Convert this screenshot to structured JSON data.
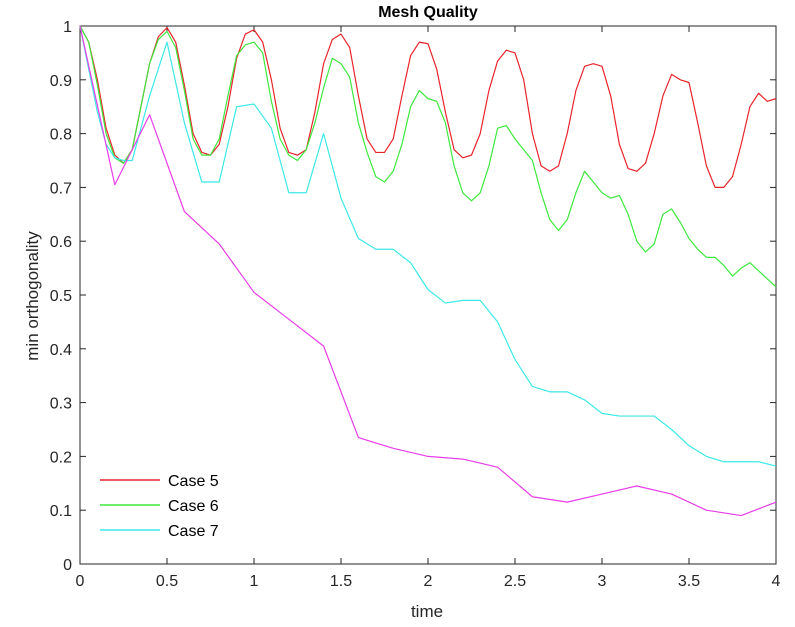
{
  "chart_data": {
    "type": "line",
    "title": "Mesh Quality",
    "xlabel": "time",
    "ylabel": "min orthogonality",
    "xlim": [
      0,
      4
    ],
    "ylim": [
      0,
      1
    ],
    "xticks": [
      0,
      0.5,
      1,
      1.5,
      2,
      2.5,
      3,
      3.5,
      4
    ],
    "xtick_labels": [
      "0",
      "0.5",
      "1",
      "1.5",
      "2",
      "2.5",
      "3",
      "3.5",
      "4"
    ],
    "yticks": [
      0,
      0.1,
      0.2,
      0.3,
      0.4,
      0.5,
      0.6,
      0.7,
      0.8,
      0.9,
      1
    ],
    "ytick_labels": [
      "0",
      "0.1",
      "0.2",
      "0.3",
      "0.4",
      "0.5",
      "0.6",
      "0.7",
      "0.8",
      "0.9",
      "1"
    ],
    "grid": false,
    "legend_position": "bottom-left",
    "series": [
      {
        "name": "Case 5",
        "color": "#e8242b",
        "x": [
          0,
          0.05,
          0.1,
          0.15,
          0.2,
          0.25,
          0.3,
          0.35,
          0.4,
          0.45,
          0.5,
          0.55,
          0.6,
          0.65,
          0.7,
          0.75,
          0.8,
          0.85,
          0.9,
          0.95,
          1.0,
          1.05,
          1.1,
          1.15,
          1.2,
          1.25,
          1.3,
          1.35,
          1.4,
          1.45,
          1.5,
          1.55,
          1.6,
          1.65,
          1.7,
          1.75,
          1.8,
          1.85,
          1.9,
          1.95,
          2.0,
          2.05,
          2.1,
          2.15,
          2.2,
          2.25,
          2.3,
          2.35,
          2.4,
          2.45,
          2.5,
          2.55,
          2.6,
          2.65,
          2.7,
          2.75,
          2.8,
          2.85,
          2.9,
          2.95,
          3.0,
          3.05,
          3.1,
          3.15,
          3.2,
          3.25,
          3.3,
          3.35,
          3.4,
          3.45,
          3.5,
          3.55,
          3.6,
          3.65,
          3.7,
          3.75,
          3.8,
          3.85,
          3.9,
          3.95,
          4.0
        ],
        "y": [
          1.0,
          0.97,
          0.9,
          0.81,
          0.76,
          0.745,
          0.77,
          0.85,
          0.93,
          0.98,
          0.997,
          0.97,
          0.89,
          0.8,
          0.765,
          0.76,
          0.78,
          0.85,
          0.94,
          0.985,
          0.993,
          0.97,
          0.9,
          0.81,
          0.765,
          0.76,
          0.77,
          0.84,
          0.93,
          0.975,
          0.985,
          0.96,
          0.87,
          0.79,
          0.765,
          0.765,
          0.79,
          0.87,
          0.945,
          0.97,
          0.967,
          0.92,
          0.84,
          0.77,
          0.755,
          0.76,
          0.8,
          0.88,
          0.935,
          0.955,
          0.95,
          0.9,
          0.8,
          0.74,
          0.73,
          0.74,
          0.8,
          0.88,
          0.925,
          0.93,
          0.925,
          0.87,
          0.78,
          0.735,
          0.73,
          0.745,
          0.8,
          0.87,
          0.91,
          0.9,
          0.895,
          0.82,
          0.74,
          0.7,
          0.7,
          0.72,
          0.78,
          0.85,
          0.875,
          0.86,
          0.865
        ]
      },
      {
        "name": "Case 6",
        "color": "#3de83d",
        "x": [
          0,
          0.05,
          0.1,
          0.15,
          0.2,
          0.25,
          0.3,
          0.35,
          0.4,
          0.45,
          0.5,
          0.55,
          0.6,
          0.65,
          0.7,
          0.75,
          0.8,
          0.85,
          0.9,
          0.95,
          1.0,
          1.05,
          1.1,
          1.15,
          1.2,
          1.25,
          1.3,
          1.35,
          1.4,
          1.45,
          1.5,
          1.55,
          1.6,
          1.65,
          1.7,
          1.75,
          1.8,
          1.85,
          1.9,
          1.95,
          2.0,
          2.05,
          2.1,
          2.15,
          2.2,
          2.25,
          2.3,
          2.35,
          2.4,
          2.45,
          2.5,
          2.55,
          2.6,
          2.65,
          2.7,
          2.75,
          2.8,
          2.85,
          2.9,
          2.95,
          3.0,
          3.05,
          3.1,
          3.15,
          3.2,
          3.25,
          3.3,
          3.35,
          3.4,
          3.45,
          3.5,
          3.55,
          3.6,
          3.65,
          3.7,
          3.75,
          3.8,
          3.85,
          3.9,
          3.95,
          4.0
        ],
        "y": [
          1.0,
          0.97,
          0.89,
          0.8,
          0.755,
          0.745,
          0.77,
          0.85,
          0.93,
          0.975,
          0.99,
          0.96,
          0.88,
          0.79,
          0.76,
          0.76,
          0.79,
          0.87,
          0.945,
          0.965,
          0.97,
          0.95,
          0.86,
          0.79,
          0.76,
          0.75,
          0.77,
          0.82,
          0.885,
          0.94,
          0.93,
          0.905,
          0.82,
          0.765,
          0.72,
          0.71,
          0.73,
          0.78,
          0.85,
          0.88,
          0.865,
          0.86,
          0.82,
          0.74,
          0.69,
          0.675,
          0.69,
          0.74,
          0.81,
          0.815,
          0.79,
          0.77,
          0.75,
          0.69,
          0.64,
          0.62,
          0.64,
          0.69,
          0.73,
          0.71,
          0.69,
          0.68,
          0.685,
          0.65,
          0.6,
          0.58,
          0.595,
          0.65,
          0.66,
          0.635,
          0.605,
          0.585,
          0.57,
          0.57,
          0.555,
          0.535,
          0.55,
          0.56,
          0.545,
          0.53,
          0.515
        ]
      },
      {
        "name": "Case 7",
        "color": "#3de8e8",
        "x": [
          0,
          0.1,
          0.15,
          0.2,
          0.25,
          0.3,
          0.4,
          0.5,
          0.6,
          0.7,
          0.8,
          0.9,
          1.0,
          1.1,
          1.2,
          1.3,
          1.4,
          1.5,
          1.6,
          1.7,
          1.8,
          1.9,
          2.0,
          2.1,
          2.2,
          2.3,
          2.4,
          2.5,
          2.6,
          2.7,
          2.8,
          2.9,
          3.0,
          3.1,
          3.2,
          3.3,
          3.4,
          3.5,
          3.6,
          3.7,
          3.8,
          3.9,
          4.0
        ],
        "y": [
          1.0,
          0.84,
          0.78,
          0.755,
          0.75,
          0.75,
          0.87,
          0.97,
          0.82,
          0.71,
          0.71,
          0.85,
          0.855,
          0.81,
          0.69,
          0.69,
          0.8,
          0.68,
          0.605,
          0.585,
          0.585,
          0.56,
          0.51,
          0.485,
          0.49,
          0.49,
          0.45,
          0.38,
          0.33,
          0.32,
          0.32,
          0.305,
          0.28,
          0.275,
          0.275,
          0.275,
          0.25,
          0.22,
          0.2,
          0.19,
          0.19,
          0.19,
          0.182
        ]
      },
      {
        "color": "#e83de8",
        "x": [
          0,
          0.2,
          0.4,
          0.6,
          0.8,
          1.0,
          1.2,
          1.4,
          1.6,
          1.8,
          2.0,
          2.2,
          2.4,
          2.6,
          2.8,
          3.0,
          3.2,
          3.4,
          3.6,
          3.8,
          4.0
        ],
        "y": [
          1.0,
          0.705,
          0.835,
          0.655,
          0.595,
          0.505,
          0.455,
          0.405,
          0.235,
          0.215,
          0.2,
          0.195,
          0.18,
          0.125,
          0.115,
          0.13,
          0.145,
          0.13,
          0.1,
          0.09,
          0.115
        ]
      }
    ]
  }
}
